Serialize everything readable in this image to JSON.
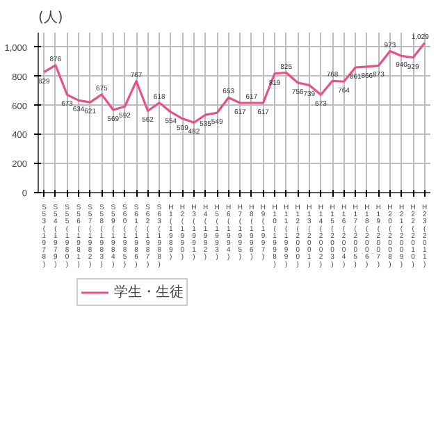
{
  "chart_data": {
    "type": "line",
    "ylabel": "(人)",
    "categories": [
      "S53(1978)",
      "S54(1979)",
      "S55(1980)",
      "S56(1981)",
      "S57(1982)",
      "S58(1983)",
      "S59(1984)",
      "S60(1985)",
      "S61(1986)",
      "S62(1987)",
      "S63(1988)",
      "H1(1989)",
      "H2(1990)",
      "H3(1991)",
      "H4(1992)",
      "H5(1993)",
      "H6(1994)",
      "H7(1995)",
      "H8(1996)",
      "H9(1997)",
      "H10(1998)",
      "H11(1999)",
      "H12(2000)",
      "H13(2001)",
      "H14(2002)",
      "H15(2003)",
      "H16(2004)",
      "H17(2005)",
      "H18(2006)",
      "H19(2007)",
      "H20(2008)",
      "H21(2009)",
      "H22(2010)",
      "H23(2011)"
    ],
    "series": [
      {
        "name": "学生・生徒",
        "color": "#e8508a",
        "values": [
          829,
          876,
          673,
          634,
          621,
          675,
          569,
          592,
          767,
          562,
          618,
          554,
          509,
          482,
          535,
          549,
          653,
          617,
          617,
          617,
          819,
          825,
          756,
          739,
          673,
          768,
          764,
          861,
          866,
          873,
          973,
          940,
          929,
          1029
        ]
      }
    ],
    "ylim": [
      0,
      1100
    ],
    "yticks": [
      0,
      200,
      400,
      600,
      800,
      {
        "value": 1000,
        "label": "1,000"
      }
    ],
    "value_labels": [
      "829",
      "876",
      "673",
      "634",
      "621",
      "675",
      "569",
      "592",
      "767",
      "562",
      "618",
      "554",
      "509",
      "482",
      "535",
      "549",
      "653",
      "617",
      "617",
      "617",
      "819",
      "825",
      "756",
      "739",
      "673",
      "768",
      "764",
      "861",
      "866",
      "873",
      "973",
      "940",
      "929",
      "1,029"
    ],
    "grid": true,
    "legend": "bottom left",
    "marker": "none"
  }
}
